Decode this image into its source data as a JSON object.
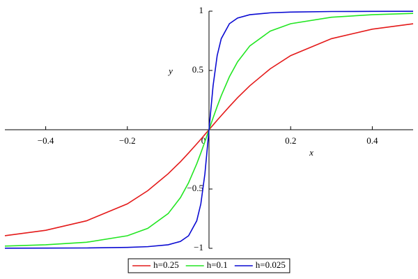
{
  "chart_data": {
    "type": "line",
    "x_label": "x",
    "y_label": "y",
    "x": [
      -0.5,
      -0.4,
      -0.3,
      -0.2,
      -0.15,
      -0.1,
      -0.07,
      -0.05,
      -0.03,
      -0.02,
      -0.01,
      0,
      0.01,
      0.02,
      0.03,
      0.05,
      0.07,
      0.1,
      0.15,
      0.2,
      0.3,
      0.4,
      0.5
    ],
    "series": [
      {
        "name": "h=0.25",
        "color": "#e41a1a",
        "values": [
          -0.894,
          -0.848,
          -0.768,
          -0.625,
          -0.514,
          -0.371,
          -0.27,
          -0.196,
          -0.119,
          -0.08,
          -0.04,
          0,
          0.04,
          0.08,
          0.119,
          0.196,
          0.27,
          0.371,
          0.514,
          0.625,
          0.768,
          0.848,
          0.894
        ]
      },
      {
        "name": "h=0.1",
        "color": "#22e622",
        "values": [
          -0.981,
          -0.97,
          -0.949,
          -0.894,
          -0.832,
          -0.707,
          -0.573,
          -0.447,
          -0.287,
          -0.196,
          -0.1,
          0,
          0.1,
          0.196,
          0.287,
          0.447,
          0.573,
          0.707,
          0.832,
          0.894,
          0.949,
          0.97,
          0.981
        ]
      },
      {
        "name": "h=0.025",
        "color": "#0a0ad2",
        "values": [
          -0.999,
          -0.998,
          -0.997,
          -0.992,
          -0.986,
          -0.97,
          -0.942,
          -0.894,
          -0.768,
          -0.625,
          -0.371,
          0,
          0.371,
          0.625,
          0.768,
          0.894,
          0.942,
          0.97,
          0.986,
          0.992,
          0.997,
          0.998,
          0.999
        ]
      }
    ],
    "xlim": [
      -0.5,
      0.5
    ],
    "ylim": [
      -1,
      1
    ],
    "xticks": [
      {
        "value": -0.4,
        "label": "−0.4"
      },
      {
        "value": -0.2,
        "label": "−0.2"
      },
      0,
      0.2,
      0.4
    ],
    "yticks": [
      {
        "value": -1,
        "label": "−1"
      },
      {
        "value": -0.5,
        "label": "−0.5"
      },
      0.5,
      1
    ],
    "legend": "bottom"
  }
}
